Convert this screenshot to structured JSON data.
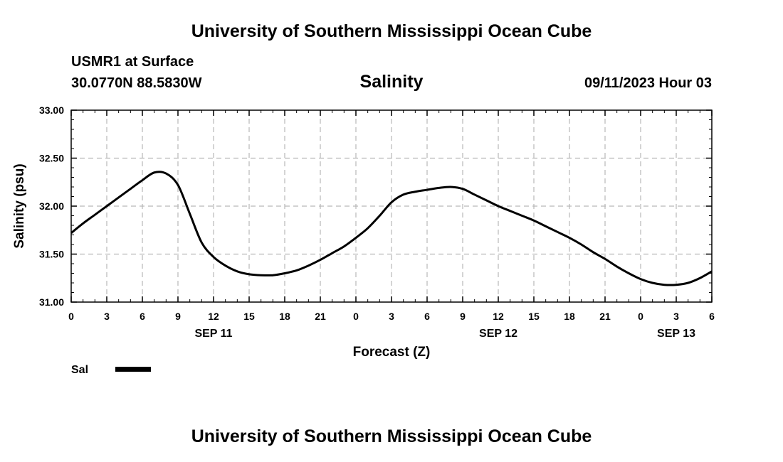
{
  "header": {
    "title": "University of Southern Mississippi Ocean Cube",
    "station": "USMR1 at Surface",
    "coords": "30.0770N  88.5830W",
    "variable": "Salinity",
    "datetime": "09/11/2023 Hour 03"
  },
  "footer": {
    "title": "University of Southern Mississippi Ocean Cube"
  },
  "chart_data": {
    "type": "line",
    "title": "Salinity",
    "xlabel": "Forecast (Z)",
    "ylabel": "Salinity (psu)",
    "ylim": [
      31.0,
      33.0
    ],
    "xlim": [
      0,
      54
    ],
    "y_ticks": [
      "31.00",
      "31.50",
      "32.00",
      "32.50",
      "33.00"
    ],
    "y_tick_values": [
      31.0,
      31.5,
      32.0,
      32.5,
      33.0
    ],
    "x_ticks": [
      0,
      3,
      6,
      9,
      12,
      15,
      18,
      21,
      24,
      27,
      30,
      33,
      36,
      39,
      42,
      45,
      48,
      51,
      54
    ],
    "x_tick_labels": [
      "0",
      "3",
      "6",
      "9",
      "12",
      "15",
      "18",
      "21",
      "0",
      "3",
      "6",
      "9",
      "12",
      "15",
      "18",
      "21",
      "0",
      "3",
      "6"
    ],
    "date_labels": [
      {
        "hour": 12,
        "label": "SEP 11"
      },
      {
        "hour": 36,
        "label": "SEP 12"
      },
      {
        "hour": 51,
        "label": "SEP 13"
      }
    ],
    "grid": true,
    "line_color": "#000000",
    "series": [
      {
        "name": "Sal",
        "x": [
          0,
          1,
          2,
          3,
          4,
          5,
          6,
          7,
          8,
          9,
          10,
          11,
          12,
          13,
          14,
          15,
          16,
          17,
          18,
          19,
          20,
          21,
          22,
          23,
          24,
          25,
          26,
          27,
          28,
          29,
          30,
          31,
          32,
          33,
          34,
          35,
          36,
          37,
          38,
          39,
          40,
          41,
          42,
          43,
          44,
          45,
          46,
          47,
          48,
          49,
          50,
          51,
          52,
          53,
          54
        ],
        "values": [
          31.72,
          31.82,
          31.91,
          32.0,
          32.09,
          32.18,
          32.27,
          32.35,
          32.34,
          32.22,
          31.92,
          31.62,
          31.47,
          31.38,
          31.32,
          31.29,
          31.28,
          31.28,
          31.3,
          31.33,
          31.38,
          31.44,
          31.51,
          31.58,
          31.67,
          31.77,
          31.9,
          32.04,
          32.12,
          32.15,
          32.17,
          32.19,
          32.2,
          32.18,
          32.12,
          32.06,
          32.0,
          31.95,
          31.9,
          31.85,
          31.79,
          31.73,
          31.67,
          31.6,
          31.52,
          31.45,
          31.37,
          31.3,
          31.24,
          31.2,
          31.18,
          31.18,
          31.2,
          31.25,
          31.32
        ]
      }
    ],
    "legend": [
      {
        "label": "Sal",
        "placement": "bottom-left"
      }
    ]
  }
}
